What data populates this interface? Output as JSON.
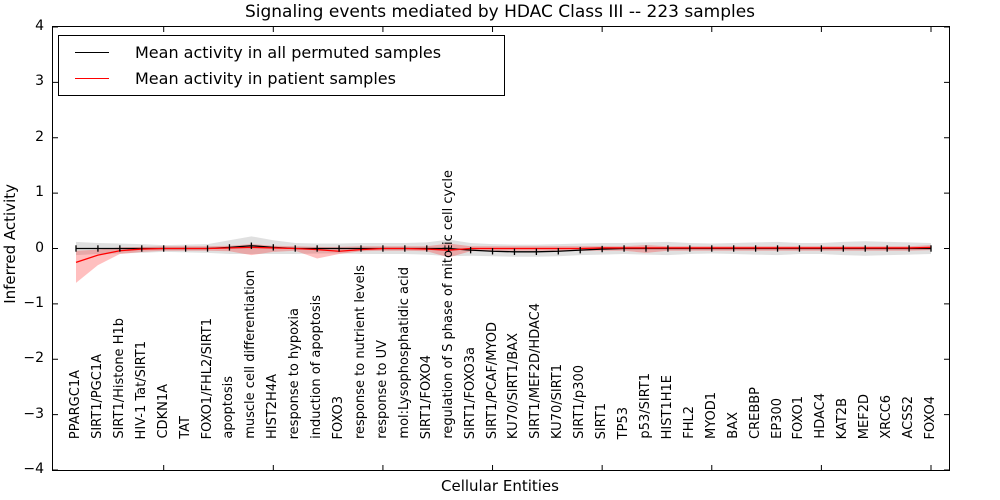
{
  "chart_data": {
    "type": "line",
    "title": "Signaling events mediated by HDAC Class III -- 223 samples",
    "xlabel": "Cellular Entities",
    "ylabel": "Inferred Activity",
    "ylim": [
      -4,
      4
    ],
    "yticks": [
      4,
      3,
      2,
      1,
      0,
      -1,
      -2,
      -3,
      -4
    ],
    "xtick_every": 5,
    "grid": false,
    "legend_position": "upper left",
    "categories": [
      "PPARGC1A",
      "SIRT1/PGC1A",
      "SIRT1/Histone H1b",
      "HIV-1 Tat/SIRT1",
      "CDKN1A",
      "TAT",
      "FOXO1/FHL2/SIRT1",
      "apoptosis",
      "muscle cell differentiation",
      "HIST2H4A",
      "response to hypoxia",
      "induction of apoptosis",
      "FOXO3",
      "response to nutrient levels",
      "response to UV",
      "mol:Lysophosphatidic acid",
      "SIRT1/FOXO4",
      "regulation of S phase of mitotic cell cycle",
      "SIRT1/FOXO3a",
      "SIRT1/PCAF/MYOD",
      "KU70/SIRT1/BAX",
      "SIRT1/MEF2D/HDAC4",
      "KU70/SIRT1",
      "SIRT1/p300",
      "SIRT1",
      "TP53",
      "p53/SIRT1",
      "HIST1H1E",
      "FHL2",
      "MYOD1",
      "BAX",
      "CREBBP",
      "EP300",
      "FOXO1",
      "HDAC4",
      "KAT2B",
      "MEF2D",
      "XRCC6",
      "ACSS2",
      "FOXO4"
    ],
    "series": [
      {
        "name": "Mean activity in all permuted samples",
        "color": "#000000",
        "band_color": "#000000",
        "band_opacity": 0.12,
        "marker": "vertical-dash",
        "values": [
          0,
          0,
          0,
          0,
          0,
          0,
          0,
          0.02,
          0.05,
          0.02,
          0,
          0,
          0,
          0,
          0,
          0,
          0,
          0,
          -0.03,
          -0.05,
          -0.06,
          -0.06,
          -0.05,
          -0.03,
          -0.01,
          0,
          0,
          0,
          0,
          0,
          0,
          0,
          0,
          0,
          0,
          0,
          0,
          0,
          0,
          0
        ],
        "band_upper": [
          0.12,
          0.1,
          0.09,
          0.08,
          0.06,
          0.07,
          0.08,
          0.15,
          0.22,
          0.15,
          0.1,
          0.09,
          0.09,
          0.1,
          0.1,
          0.1,
          0.11,
          0.16,
          0.1,
          0.08,
          0.07,
          0.07,
          0.08,
          0.09,
          0.1,
          0.1,
          0.11,
          0.12,
          0.1,
          0.09,
          0.1,
          0.11,
          0.12,
          0.1,
          0.1,
          0.12,
          0.13,
          0.12,
          0.11,
          0.1
        ],
        "band_lower": [
          -0.12,
          -0.1,
          -0.09,
          -0.08,
          -0.06,
          -0.07,
          -0.08,
          -0.1,
          -0.1,
          -0.1,
          -0.1,
          -0.09,
          -0.09,
          -0.1,
          -0.1,
          -0.1,
          -0.11,
          -0.14,
          -0.13,
          -0.14,
          -0.15,
          -0.15,
          -0.14,
          -0.12,
          -0.11,
          -0.1,
          -0.11,
          -0.12,
          -0.1,
          -0.09,
          -0.1,
          -0.11,
          -0.12,
          -0.1,
          -0.1,
          -0.12,
          -0.13,
          -0.12,
          -0.11,
          -0.1
        ]
      },
      {
        "name": "Mean activity in patient samples",
        "color": "#ff0000",
        "band_color": "#ff0000",
        "band_opacity": 0.25,
        "marker": "none",
        "values": [
          -0.25,
          -0.12,
          -0.04,
          -0.01,
          0,
          0,
          0,
          0.01,
          0.02,
          0.01,
          0,
          -0.02,
          -0.05,
          -0.02,
          0,
          0,
          -0.01,
          -0.03,
          0,
          0,
          0,
          0,
          0,
          0,
          0.01,
          0.01,
          0.01,
          0.01,
          0.01,
          0.01,
          0.01,
          0.01,
          0.01,
          0.01,
          0.01,
          0.01,
          0.01,
          0.01,
          0.01,
          0.02
        ],
        "band_upper": [
          -0.04,
          -0.02,
          0.02,
          0.03,
          0.04,
          0.04,
          0.04,
          0.05,
          0.08,
          0.05,
          0.04,
          0.03,
          0.03,
          0.04,
          0.04,
          0.04,
          0.04,
          0.09,
          0.04,
          0.04,
          0.04,
          0.04,
          0.04,
          0.04,
          0.04,
          0.04,
          0.06,
          0.04,
          0.04,
          0.04,
          0.04,
          0.04,
          0.04,
          0.04,
          0.04,
          0.04,
          0.04,
          0.04,
          0.04,
          0.06
        ],
        "band_lower": [
          -0.62,
          -0.3,
          -0.1,
          -0.06,
          -0.04,
          -0.04,
          -0.04,
          -0.05,
          -0.12,
          -0.06,
          -0.04,
          -0.18,
          -0.1,
          -0.05,
          -0.04,
          -0.04,
          -0.05,
          -0.16,
          -0.05,
          -0.04,
          -0.04,
          -0.04,
          -0.04,
          -0.04,
          -0.04,
          -0.04,
          -0.08,
          -0.04,
          -0.04,
          -0.04,
          -0.04,
          -0.04,
          -0.04,
          -0.04,
          -0.04,
          -0.04,
          -0.04,
          -0.04,
          -0.04,
          -0.03
        ]
      }
    ]
  }
}
